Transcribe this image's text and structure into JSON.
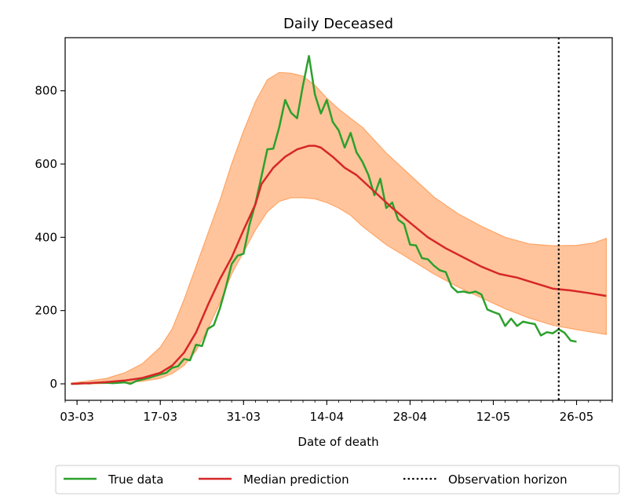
{
  "chart_data": {
    "type": "line",
    "title": "Daily Deceased",
    "xlabel": "Date of death",
    "ylabel": "",
    "x_axis": {
      "type": "date",
      "start": "2020-03-01",
      "end": "2020-06-01"
    },
    "xticks": [
      "03-03",
      "17-03",
      "31-03",
      "14-04",
      "28-04",
      "12-05",
      "26-05"
    ],
    "xticks_dates": [
      "2020-03-03",
      "2020-03-17",
      "2020-03-31",
      "2020-04-14",
      "2020-04-28",
      "2020-05-12",
      "2020-05-26"
    ],
    "yticks": [
      0,
      200,
      400,
      600,
      800
    ],
    "ylim": [
      -45,
      945
    ],
    "grid": false,
    "legend": {
      "placement": "bottom-outside",
      "entries": [
        "True data",
        "Median prediction",
        "Observation horizon"
      ]
    },
    "observation_horizon": {
      "date": "2020-05-23",
      "label": "Observation horizon",
      "color": "#000000",
      "style": "dotted"
    },
    "series": [
      {
        "name": "True data",
        "color": "#2ca02c",
        "points": [
          [
            "2020-03-02",
            0
          ],
          [
            "2020-03-03",
            0
          ],
          [
            "2020-03-04",
            2
          ],
          [
            "2020-03-05",
            1
          ],
          [
            "2020-03-06",
            3
          ],
          [
            "2020-03-07",
            3
          ],
          [
            "2020-03-08",
            3
          ],
          [
            "2020-03-09",
            2
          ],
          [
            "2020-03-10",
            3
          ],
          [
            "2020-03-11",
            4
          ],
          [
            "2020-03-12",
            0
          ],
          [
            "2020-03-13",
            8
          ],
          [
            "2020-03-14",
            12
          ],
          [
            "2020-03-15",
            16
          ],
          [
            "2020-03-16",
            21
          ],
          [
            "2020-03-17",
            26
          ],
          [
            "2020-03-18",
            30
          ],
          [
            "2020-03-19",
            44
          ],
          [
            "2020-03-20",
            48
          ],
          [
            "2020-03-21",
            68
          ],
          [
            "2020-03-22",
            64
          ],
          [
            "2020-03-23",
            107
          ],
          [
            "2020-03-24",
            103
          ],
          [
            "2020-03-25",
            150
          ],
          [
            "2020-03-26",
            160
          ],
          [
            "2020-03-27",
            205
          ],
          [
            "2020-03-28",
            262
          ],
          [
            "2020-03-29",
            327
          ],
          [
            "2020-03-30",
            350
          ],
          [
            "2020-03-31",
            355
          ],
          [
            "2020-04-01",
            435
          ],
          [
            "2020-04-02",
            492
          ],
          [
            "2020-04-03",
            565
          ],
          [
            "2020-04-04",
            640
          ],
          [
            "2020-04-05",
            642
          ],
          [
            "2020-04-06",
            700
          ],
          [
            "2020-04-07",
            775
          ],
          [
            "2020-04-08",
            740
          ],
          [
            "2020-04-09",
            725
          ],
          [
            "2020-04-10",
            815
          ],
          [
            "2020-04-11",
            895
          ],
          [
            "2020-04-12",
            790
          ],
          [
            "2020-04-13",
            738
          ],
          [
            "2020-04-14",
            775
          ],
          [
            "2020-04-15",
            715
          ],
          [
            "2020-04-16",
            692
          ],
          [
            "2020-04-17",
            645
          ],
          [
            "2020-04-18",
            685
          ],
          [
            "2020-04-19",
            632
          ],
          [
            "2020-04-20",
            606
          ],
          [
            "2020-04-21",
            570
          ],
          [
            "2020-04-22",
            515
          ],
          [
            "2020-04-23",
            560
          ],
          [
            "2020-04-24",
            480
          ],
          [
            "2020-04-25",
            495
          ],
          [
            "2020-04-26",
            448
          ],
          [
            "2020-04-27",
            436
          ],
          [
            "2020-04-28",
            380
          ],
          [
            "2020-04-29",
            378
          ],
          [
            "2020-04-30",
            343
          ],
          [
            "2020-05-01",
            340
          ],
          [
            "2020-05-02",
            323
          ],
          [
            "2020-05-03",
            310
          ],
          [
            "2020-05-04",
            305
          ],
          [
            "2020-05-05",
            265
          ],
          [
            "2020-05-06",
            250
          ],
          [
            "2020-05-07",
            252
          ],
          [
            "2020-05-08",
            248
          ],
          [
            "2020-05-09",
            252
          ],
          [
            "2020-05-10",
            244
          ],
          [
            "2020-05-11",
            203
          ],
          [
            "2020-05-12",
            196
          ],
          [
            "2020-05-13",
            190
          ],
          [
            "2020-05-14",
            158
          ],
          [
            "2020-05-15",
            178
          ],
          [
            "2020-05-16",
            158
          ],
          [
            "2020-05-17",
            170
          ],
          [
            "2020-05-18",
            166
          ],
          [
            "2020-05-19",
            163
          ],
          [
            "2020-05-20",
            132
          ],
          [
            "2020-05-21",
            141
          ],
          [
            "2020-05-22",
            138
          ],
          [
            "2020-05-23",
            149
          ],
          [
            "2020-05-24",
            139
          ],
          [
            "2020-05-25",
            118
          ],
          [
            "2020-05-26",
            115
          ]
        ]
      },
      {
        "name": "Median prediction",
        "color": "#d62728",
        "points": [
          [
            "2020-03-02",
            0
          ],
          [
            "2020-03-05",
            2
          ],
          [
            "2020-03-08",
            5
          ],
          [
            "2020-03-11",
            9
          ],
          [
            "2020-03-14",
            16
          ],
          [
            "2020-03-17",
            30
          ],
          [
            "2020-03-19",
            50
          ],
          [
            "2020-03-21",
            85
          ],
          [
            "2020-03-23",
            140
          ],
          [
            "2020-03-25",
            215
          ],
          [
            "2020-03-27",
            285
          ],
          [
            "2020-03-29",
            345
          ],
          [
            "2020-03-31",
            420
          ],
          [
            "2020-04-02",
            490
          ],
          [
            "2020-04-03",
            545
          ],
          [
            "2020-04-05",
            590
          ],
          [
            "2020-04-07",
            620
          ],
          [
            "2020-04-09",
            640
          ],
          [
            "2020-04-11",
            650
          ],
          [
            "2020-04-12",
            650
          ],
          [
            "2020-04-13",
            645
          ],
          [
            "2020-04-15",
            620
          ],
          [
            "2020-04-17",
            590
          ],
          [
            "2020-04-19",
            570
          ],
          [
            "2020-04-21",
            540
          ],
          [
            "2020-04-23",
            510
          ],
          [
            "2020-04-25",
            480
          ],
          [
            "2020-04-28",
            440
          ],
          [
            "2020-05-01",
            400
          ],
          [
            "2020-05-04",
            370
          ],
          [
            "2020-05-07",
            345
          ],
          [
            "2020-05-10",
            320
          ],
          [
            "2020-05-13",
            300
          ],
          [
            "2020-05-16",
            290
          ],
          [
            "2020-05-19",
            275
          ],
          [
            "2020-05-22",
            260
          ],
          [
            "2020-05-25",
            255
          ],
          [
            "2020-05-28",
            248
          ],
          [
            "2020-05-31",
            240
          ]
        ]
      }
    ],
    "prediction_interval": {
      "color": "#ffa566",
      "opacity": 0.65,
      "upper": [
        [
          "2020-03-02",
          2
        ],
        [
          "2020-03-05",
          8
        ],
        [
          "2020-03-08",
          15
        ],
        [
          "2020-03-11",
          30
        ],
        [
          "2020-03-14",
          55
        ],
        [
          "2020-03-17",
          100
        ],
        [
          "2020-03-19",
          150
        ],
        [
          "2020-03-21",
          230
        ],
        [
          "2020-03-23",
          320
        ],
        [
          "2020-03-25",
          410
        ],
        [
          "2020-03-27",
          500
        ],
        [
          "2020-03-29",
          600
        ],
        [
          "2020-03-31",
          690
        ],
        [
          "2020-04-02",
          770
        ],
        [
          "2020-04-04",
          830
        ],
        [
          "2020-04-06",
          850
        ],
        [
          "2020-04-08",
          848
        ],
        [
          "2020-04-10",
          840
        ],
        [
          "2020-04-12",
          815
        ],
        [
          "2020-04-14",
          780
        ],
        [
          "2020-04-16",
          750
        ],
        [
          "2020-04-18",
          725
        ],
        [
          "2020-04-20",
          700
        ],
        [
          "2020-04-22",
          665
        ],
        [
          "2020-04-24",
          630
        ],
        [
          "2020-04-28",
          570
        ],
        [
          "2020-05-02",
          510
        ],
        [
          "2020-05-06",
          465
        ],
        [
          "2020-05-10",
          430
        ],
        [
          "2020-05-14",
          400
        ],
        [
          "2020-05-18",
          382
        ],
        [
          "2020-05-22",
          377
        ],
        [
          "2020-05-26",
          378
        ],
        [
          "2020-05-29",
          385
        ],
        [
          "2020-05-31",
          397
        ]
      ],
      "lower": [
        [
          "2020-03-02",
          0
        ],
        [
          "2020-03-05",
          0
        ],
        [
          "2020-03-08",
          1
        ],
        [
          "2020-03-11",
          3
        ],
        [
          "2020-03-14",
          7
        ],
        [
          "2020-03-17",
          15
        ],
        [
          "2020-03-19",
          28
        ],
        [
          "2020-03-21",
          50
        ],
        [
          "2020-03-23",
          90
        ],
        [
          "2020-03-25",
          150
        ],
        [
          "2020-03-27",
          220
        ],
        [
          "2020-03-29",
          300
        ],
        [
          "2020-03-31",
          360
        ],
        [
          "2020-04-02",
          420
        ],
        [
          "2020-04-04",
          470
        ],
        [
          "2020-04-06",
          498
        ],
        [
          "2020-04-08",
          508
        ],
        [
          "2020-04-10",
          508
        ],
        [
          "2020-04-12",
          505
        ],
        [
          "2020-04-14",
          495
        ],
        [
          "2020-04-16",
          480
        ],
        [
          "2020-04-18",
          460
        ],
        [
          "2020-04-20",
          430
        ],
        [
          "2020-04-22",
          405
        ],
        [
          "2020-04-24",
          380
        ],
        [
          "2020-04-28",
          340
        ],
        [
          "2020-05-02",
          300
        ],
        [
          "2020-05-06",
          265
        ],
        [
          "2020-05-10",
          235
        ],
        [
          "2020-05-14",
          205
        ],
        [
          "2020-05-18",
          180
        ],
        [
          "2020-05-22",
          160
        ],
        [
          "2020-05-26",
          148
        ],
        [
          "2020-05-29",
          140
        ],
        [
          "2020-05-31",
          135
        ]
      ]
    }
  }
}
